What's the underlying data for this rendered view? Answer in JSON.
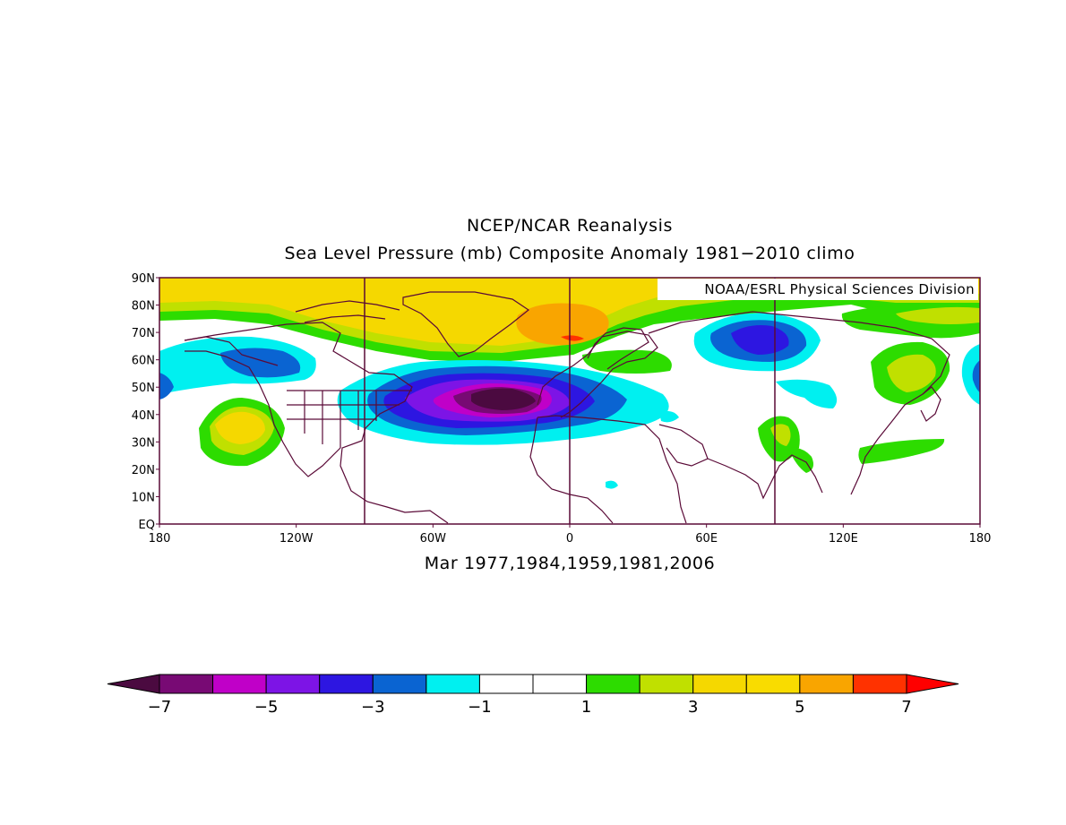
{
  "title": "NCEP/NCAR Reanalysis",
  "subtitle": "Sea Level Pressure (mb) Composite Anomaly 1981−2010 climo",
  "credit": "NOAA/ESRL Physical Sciences Division",
  "caption": "Mar 1977,1984,1959,1981,2006",
  "map": {
    "projection": "cylindrical equidistant",
    "lon_range": [
      -180,
      180
    ],
    "lat_range": [
      0,
      90
    ],
    "lat_labels": [
      "90N",
      "80N",
      "70N",
      "60N",
      "50N",
      "40N",
      "30N",
      "20N",
      "10N",
      "EQ"
    ],
    "lon_labels": [
      "180",
      "120W",
      "60W",
      "0",
      "60E",
      "120E",
      "180"
    ],
    "grid_lines_lon": [
      -90,
      0,
      90
    ],
    "coastline_color": "#5a0a37",
    "frame_color": "#5a0a37"
  },
  "colorbar": {
    "labels": [
      "−7",
      "−5",
      "−3",
      "−1",
      "1",
      "3",
      "5",
      "7"
    ],
    "colors": [
      "#4b0a40",
      "#780a74",
      "#c000c8",
      "#7d14e6",
      "#2d16e1",
      "#0a64d2",
      "#00f0f0",
      "#ffffff",
      "#ffffff",
      "#2ddc00",
      "#c0e000",
      "#f5d800",
      "#f9dc00",
      "#f9a500",
      "#ff3200",
      "#ff0000"
    ],
    "extend": "both"
  },
  "anomaly_features": [
    {
      "name": "north-atlantic-low",
      "lon": -25,
      "lat": 46,
      "value": -7
    },
    {
      "name": "greenland-high",
      "lon": -40,
      "lat": 78,
      "value": 5
    },
    {
      "name": "arctic-high",
      "lon": 5,
      "lat": 70,
      "value": 6
    },
    {
      "name": "siberian-low",
      "lon": 85,
      "lat": 66,
      "value": -4
    },
    {
      "name": "gulf-of-alaska-low",
      "lon": -130,
      "lat": 58,
      "value": -2
    },
    {
      "name": "subtropical-pacific-high",
      "lon": -150,
      "lat": 37,
      "value": 4
    },
    {
      "name": "east-asia-high",
      "lon": 145,
      "lat": 58,
      "value": 3
    }
  ]
}
